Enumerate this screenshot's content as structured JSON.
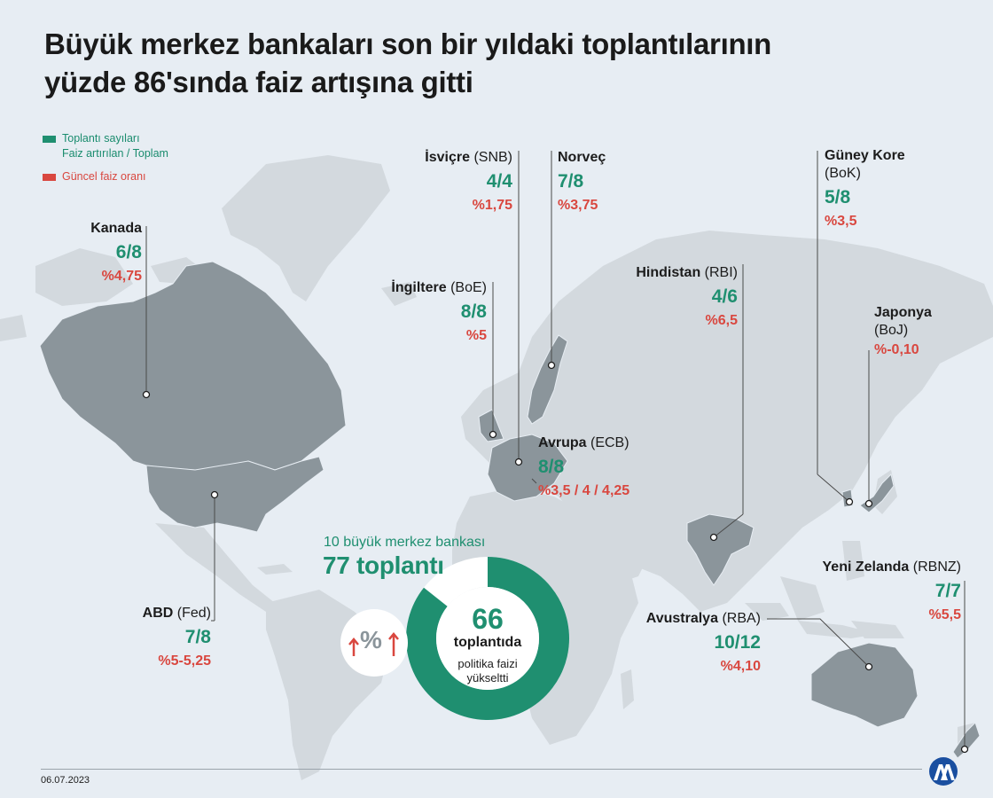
{
  "title": {
    "line1": "Büyük merkez bankaları son bir yıldaki toplantılarının",
    "line2": "yüzde 86'sında faiz artışına gitti"
  },
  "legend": {
    "meetings_line1": "Toplantı sayıları",
    "meetings_line2": "Faiz artırılan / Toplam",
    "rate": "Güncel faiz oranı",
    "colors": {
      "meetings": "#1f8f70",
      "rate": "#d9473f"
    }
  },
  "banks": {
    "kanada": {
      "name": "Kanada",
      "abbr": "",
      "count": "6/8",
      "rate": "%4,75"
    },
    "isvicre": {
      "name": "İsviçre",
      "abbr": "(SNB)",
      "count": "4/4",
      "rate": "%1,75"
    },
    "norvec": {
      "name": "Norveç",
      "abbr": "",
      "count": "7/8",
      "rate": "%3,75"
    },
    "ingiltere": {
      "name": "İngiltere",
      "abbr": "(BoE)",
      "count": "8/8",
      "rate": "%5"
    },
    "guney_kore": {
      "name": "Güney Kore",
      "abbr": "(BoK)",
      "count": "5/8",
      "rate": "%3,5"
    },
    "hindistan": {
      "name": "Hindistan",
      "abbr": "(RBI)",
      "count": "4/6",
      "rate": "%6,5"
    },
    "japonya": {
      "name": "Japonya",
      "abbr": "(BoJ)",
      "count": "",
      "rate": "%-0,10"
    },
    "avrupa": {
      "name": "Avrupa",
      "abbr": "(ECB)",
      "count": "8/8",
      "rate": "%3,5 / 4 / 4,25"
    },
    "abd": {
      "name": "ABD",
      "abbr": "(Fed)",
      "count": "7/8",
      "rate": "%5-5,25"
    },
    "yeni_zelanda": {
      "name": "Yeni Zelanda",
      "abbr": "(RBNZ)",
      "count": "7/7",
      "rate": "%5,5"
    },
    "avustralya": {
      "name": "Avustralya",
      "abbr": "(RBA)",
      "count": "10/12",
      "rate": "%4,10"
    }
  },
  "summary": {
    "subtitle": "10 büyük merkez bankası",
    "total": "77 toplantı",
    "hikes_number": "66",
    "hikes_l1": "toplantıda",
    "hikes_l2": "politika faizi",
    "hikes_l3": "yükseltti",
    "hike_share": 0.857,
    "percent_symbol": "%"
  },
  "footer": {
    "date": "06.07.2023"
  },
  "colors": {
    "green": "#1f8f70",
    "red": "#d9473f",
    "land": "#d3d9de",
    "highlight": "#8b959b",
    "sea": "#e7edf3"
  }
}
